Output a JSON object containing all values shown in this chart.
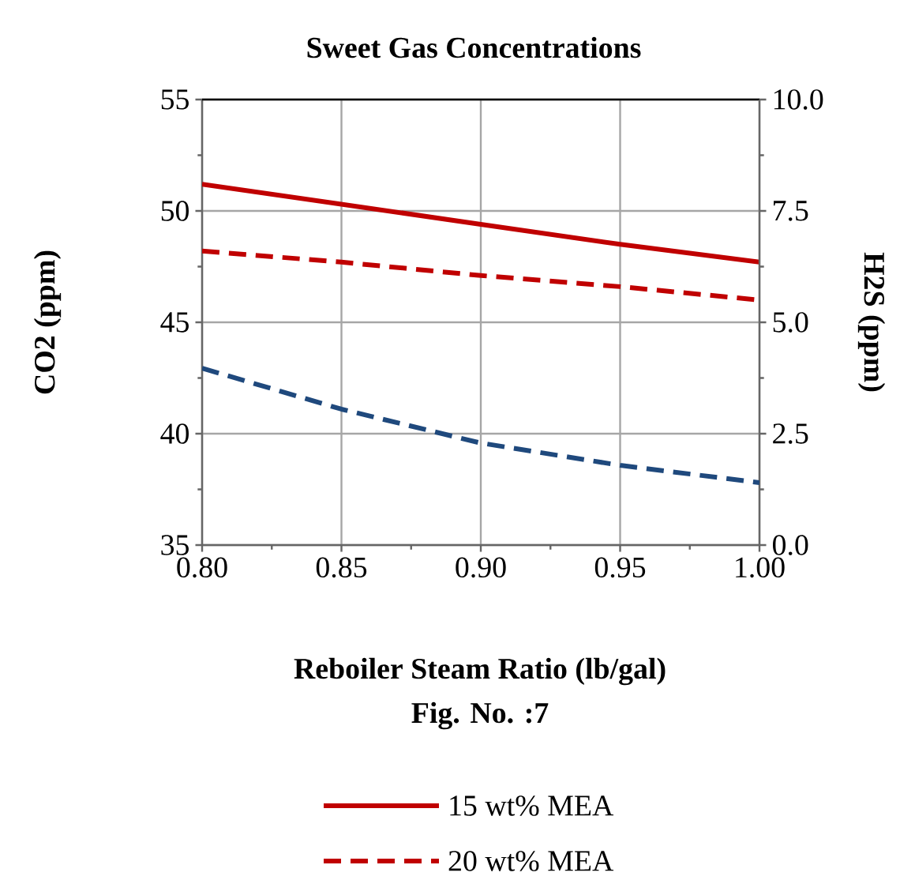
{
  "chart_data": {
    "type": "line",
    "title": "Sweet Gas Concentrations",
    "xlabel": "Reboiler Steam Ratio (lb/gal)",
    "ylabel": "CO2 (ppm)",
    "y2label": "H2S (ppm)",
    "annotations": [
      "Fig.  No. :7"
    ],
    "x": [
      0.8,
      0.85,
      0.9,
      0.95,
      1.0
    ],
    "series": [
      {
        "name": "15 wt% MEA",
        "color": "#c00000",
        "line_style": "solid",
        "values": [
          51.2,
          50.3,
          49.4,
          48.5,
          47.7
        ]
      },
      {
        "name": "20 wt% MEA",
        "color": "#c00000",
        "line_style": "dashed",
        "values": [
          48.2,
          47.7,
          47.1,
          46.6,
          46.0
        ]
      },
      {
        "color": "#1f497d",
        "line_style": "dashed",
        "axis": "y2",
        "values": [
          3.97,
          3.05,
          2.29,
          1.79,
          1.4
        ]
      }
    ],
    "xlim": [
      0.8,
      1.0
    ],
    "xticks": [
      {
        "value": 0.8,
        "label": "0.80"
      },
      {
        "value": 0.85,
        "label": "0.85"
      },
      {
        "value": 0.9,
        "label": "0.90"
      },
      {
        "value": 0.95,
        "label": "0.95"
      },
      {
        "value": 1.0,
        "label": "1.00"
      }
    ],
    "ylim": [
      35,
      55
    ],
    "yticks": [
      35,
      40,
      45,
      50,
      55
    ],
    "y2lim": [
      0,
      10
    ],
    "y2ticks": [
      {
        "value": 0,
        "label": "0.0"
      },
      {
        "value": 2.5,
        "label": "2.5"
      },
      {
        "value": 5,
        "label": "5.0"
      },
      {
        "value": 7.5,
        "label": "7.5"
      },
      {
        "value": 10,
        "label": "10.0"
      }
    ],
    "grid": true,
    "legend": "bottom",
    "marker": "none"
  }
}
